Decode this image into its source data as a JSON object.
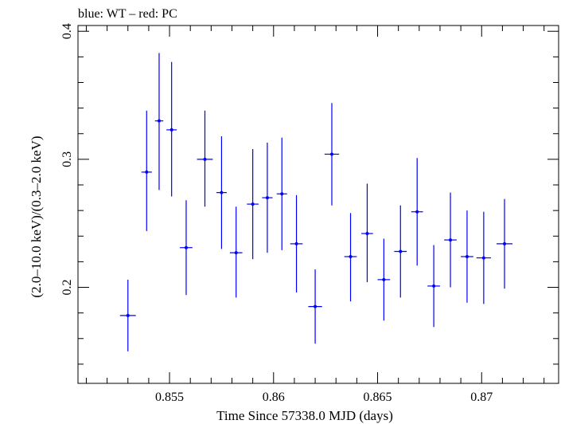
{
  "header": {
    "legend_text": "blue: WT – red: PC"
  },
  "chart_data": {
    "type": "scatter",
    "title": "",
    "xlabel": "Time Since 57338.0 MJD (days)",
    "ylabel": "(2.0–10.0 keV)/(0.3–2.0 keV)",
    "xlim": [
      0.8506,
      0.8737
    ],
    "ylim": [
      0.125,
      0.4045
    ],
    "x_ticks_major": [
      0.855,
      0.86,
      0.865,
      0.87
    ],
    "x_tick_labels": [
      "0.855",
      "0.86",
      "0.865",
      "0.87"
    ],
    "y_ticks_major": [
      0.2,
      0.3,
      0.4
    ],
    "y_tick_labels": [
      "0.2",
      "0.3",
      "0.4"
    ],
    "grid": false,
    "series": [
      {
        "color": "#0000ff",
        "points": [
          {
            "x": 0.853,
            "xerr": 0.00038,
            "y": 0.178,
            "yerr_lo": 0.028,
            "yerr_hi": 0.028
          },
          {
            "x": 0.8539,
            "xerr": 0.00025,
            "y": 0.29,
            "yerr_lo": 0.046,
            "yerr_hi": 0.048
          },
          {
            "x": 0.8545,
            "xerr": 0.0002,
            "y": 0.33,
            "yerr_lo": 0.054,
            "yerr_hi": 0.053
          },
          {
            "x": 0.8551,
            "xerr": 0.00025,
            "y": 0.323,
            "yerr_lo": 0.052,
            "yerr_hi": 0.053
          },
          {
            "x": 0.8558,
            "xerr": 0.0003,
            "y": 0.231,
            "yerr_lo": 0.037,
            "yerr_hi": 0.037
          },
          {
            "x": 0.8567,
            "xerr": 0.00038,
            "y": 0.3,
            "yerr_lo": 0.037,
            "yerr_hi": 0.038
          },
          {
            "x": 0.8575,
            "xerr": 0.00025,
            "y": 0.274,
            "yerr_lo": 0.044,
            "yerr_hi": 0.044
          },
          {
            "x": 0.8582,
            "xerr": 0.0003,
            "y": 0.227,
            "yerr_lo": 0.035,
            "yerr_hi": 0.036
          },
          {
            "x": 0.859,
            "xerr": 0.00028,
            "y": 0.265,
            "yerr_lo": 0.043,
            "yerr_hi": 0.043
          },
          {
            "x": 0.8597,
            "xerr": 0.00025,
            "y": 0.27,
            "yerr_lo": 0.043,
            "yerr_hi": 0.043
          },
          {
            "x": 0.8604,
            "xerr": 0.00025,
            "y": 0.273,
            "yerr_lo": 0.044,
            "yerr_hi": 0.044
          },
          {
            "x": 0.8611,
            "xerr": 0.0003,
            "y": 0.234,
            "yerr_lo": 0.038,
            "yerr_hi": 0.038
          },
          {
            "x": 0.862,
            "xerr": 0.00033,
            "y": 0.185,
            "yerr_lo": 0.029,
            "yerr_hi": 0.029
          },
          {
            "x": 0.8628,
            "xerr": 0.00035,
            "y": 0.304,
            "yerr_lo": 0.04,
            "yerr_hi": 0.04
          },
          {
            "x": 0.8637,
            "xerr": 0.0003,
            "y": 0.224,
            "yerr_lo": 0.035,
            "yerr_hi": 0.034
          },
          {
            "x": 0.8645,
            "xerr": 0.00028,
            "y": 0.242,
            "yerr_lo": 0.038,
            "yerr_hi": 0.039
          },
          {
            "x": 0.8653,
            "xerr": 0.0003,
            "y": 0.206,
            "yerr_lo": 0.032,
            "yerr_hi": 0.032
          },
          {
            "x": 0.8661,
            "xerr": 0.0003,
            "y": 0.228,
            "yerr_lo": 0.036,
            "yerr_hi": 0.036
          },
          {
            "x": 0.8669,
            "xerr": 0.00028,
            "y": 0.259,
            "yerr_lo": 0.042,
            "yerr_hi": 0.042
          },
          {
            "x": 0.8677,
            "xerr": 0.0003,
            "y": 0.201,
            "yerr_lo": 0.032,
            "yerr_hi": 0.032
          },
          {
            "x": 0.8685,
            "xerr": 0.0003,
            "y": 0.237,
            "yerr_lo": 0.037,
            "yerr_hi": 0.037
          },
          {
            "x": 0.8693,
            "xerr": 0.0003,
            "y": 0.224,
            "yerr_lo": 0.036,
            "yerr_hi": 0.036
          },
          {
            "x": 0.8701,
            "xerr": 0.00035,
            "y": 0.223,
            "yerr_lo": 0.036,
            "yerr_hi": 0.036
          },
          {
            "x": 0.8711,
            "xerr": 0.00038,
            "y": 0.234,
            "yerr_lo": 0.035,
            "yerr_hi": 0.035
          }
        ]
      }
    ]
  }
}
